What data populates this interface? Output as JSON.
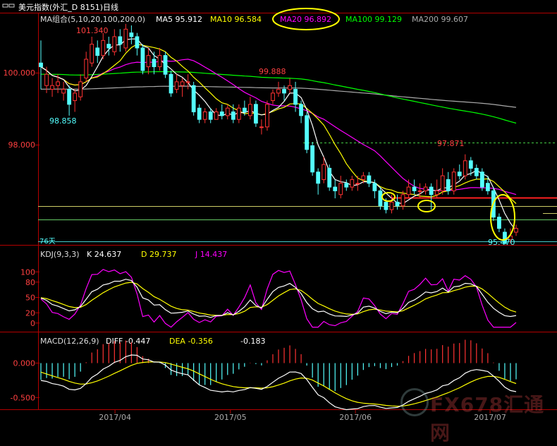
{
  "title": {
    "icon": "window-icon",
    "text": "美元指数(外汇_D 8151)日线"
  },
  "ma_legend": {
    "label": "MA组合(5,10,20,100,200,0)",
    "items": [
      {
        "text": "MA5 95.912",
        "color": "#ffffff"
      },
      {
        "text": "MA10 96.584",
        "color": "#ffff00"
      },
      {
        "text": "MA20 96.892",
        "color": "#ff00ff"
      },
      {
        "text": "MA100 99.129",
        "color": "#00ff00"
      },
      {
        "text": "MA200 99.607",
        "color": "#aaaaaa"
      }
    ],
    "highlight_index": 2
  },
  "kdj_legend": {
    "label": "KDJ(9,3,3)",
    "k": "K  24.637",
    "d": "D  29.737",
    "j": "J  14.437"
  },
  "macd_legend": {
    "label": "MACD(12,26,9)",
    "diff": "DIFF  -0.447",
    "dea": "DEA  -0.356",
    "macd": "-0.183"
  },
  "annotations": {
    "high1": "101.340",
    "low1": "98.858",
    "high2": "99.888",
    "high3": "97.871",
    "low_final": "95.470",
    "days": "76天"
  },
  "watermark": "FX678汇通网",
  "colors": {
    "up": "#ff3232",
    "down": "#54ffff",
    "ma5": "#ffffff",
    "ma10": "#ffff00",
    "ma20": "#ff00ff",
    "ma100": "#00ff00",
    "ma200": "#aaaaaa",
    "axis": "#b40000",
    "highlight": "#ffff00"
  },
  "chart_data": [
    {
      "type": "candlestick",
      "title": "美元指数(外汇_D 8151)日线",
      "x_labels": [
        "2017/04",
        "2017/05",
        "2017/06",
        "2017/07"
      ],
      "y_ticks": [
        98.0,
        100.0
      ],
      "ylim": [
        95.5,
        101.3
      ],
      "candles": [
        [
          100.3,
          100.2,
          100.9,
          99.6
        ],
        [
          99.7,
          100.0,
          100.2,
          99.5
        ],
        [
          99.6,
          99.7,
          99.9,
          99.4
        ],
        [
          99.7,
          99.8,
          100.0,
          99.5
        ],
        [
          99.5,
          99.6,
          99.8,
          99.3
        ],
        [
          99.6,
          99.2,
          99.7,
          98.9
        ],
        [
          99.3,
          99.5,
          99.6,
          99.0
        ],
        [
          99.4,
          99.8,
          100.0,
          99.3
        ],
        [
          99.9,
          100.4,
          100.6,
          99.8
        ],
        [
          100.3,
          100.8,
          101.0,
          100.2
        ],
        [
          100.7,
          100.5,
          100.9,
          100.3
        ],
        [
          100.5,
          100.9,
          101.1,
          100.4
        ],
        [
          100.8,
          100.7,
          101.0,
          100.5
        ],
        [
          100.6,
          101.0,
          101.2,
          100.5
        ],
        [
          101.0,
          100.8,
          101.2,
          100.6
        ],
        [
          100.7,
          101.2,
          101.34,
          100.6
        ],
        [
          101.1,
          101.0,
          101.3,
          100.8
        ],
        [
          101.0,
          100.7,
          101.1,
          100.5
        ],
        [
          100.7,
          100.1,
          100.8,
          100.0
        ],
        [
          100.2,
          100.5,
          100.7,
          100.0
        ],
        [
          100.4,
          100.2,
          100.6,
          100.0
        ],
        [
          100.2,
          100.5,
          100.7,
          100.1
        ],
        [
          100.5,
          100.0,
          100.6,
          99.9
        ],
        [
          100.0,
          99.5,
          100.1,
          99.4
        ],
        [
          99.6,
          99.8,
          100.0,
          99.5
        ],
        [
          99.7,
          99.8,
          99.9,
          99.4
        ],
        [
          99.8,
          99.8,
          100.0,
          99.6
        ],
        [
          99.7,
          99.0,
          99.8,
          98.9
        ],
        [
          99.1,
          98.8,
          99.2,
          98.7
        ],
        [
          98.8,
          99.0,
          99.1,
          98.7
        ],
        [
          99.0,
          98.8,
          99.1,
          98.7
        ],
        [
          98.8,
          99.0,
          99.1,
          98.8
        ],
        [
          99.0,
          98.9,
          99.2,
          98.8
        ],
        [
          98.9,
          99.1,
          99.2,
          98.8
        ],
        [
          99.0,
          98.8,
          99.2,
          98.7
        ],
        [
          98.8,
          99.1,
          99.2,
          98.7
        ],
        [
          99.1,
          99.0,
          99.3,
          98.9
        ],
        [
          98.9,
          99.2,
          99.4,
          98.8
        ],
        [
          99.2,
          98.7,
          99.3,
          98.6
        ],
        [
          98.6,
          98.6,
          98.8,
          98.4
        ],
        [
          98.6,
          99.2,
          99.3,
          98.5
        ],
        [
          99.3,
          99.5,
          99.6,
          99.2
        ],
        [
          99.5,
          99.6,
          99.8,
          99.4
        ],
        [
          99.6,
          99.5,
          99.7,
          99.3
        ],
        [
          99.6,
          99.7,
          99.888,
          99.5
        ],
        [
          99.6,
          99.2,
          99.8,
          99.0
        ],
        [
          99.2,
          98.9,
          99.3,
          98.7
        ],
        [
          98.9,
          98.0,
          99.0,
          97.9
        ],
        [
          98.1,
          97.4,
          98.2,
          97.3
        ],
        [
          97.4,
          97.1,
          97.5,
          96.8
        ],
        [
          97.2,
          97.6,
          97.8,
          97.1
        ],
        [
          97.5,
          97.0,
          97.6,
          96.9
        ],
        [
          97.0,
          96.9,
          97.2,
          96.7
        ],
        [
          96.8,
          97.1,
          97.3,
          96.7
        ],
        [
          97.1,
          97.0,
          97.2,
          96.9
        ],
        [
          97.0,
          97.2,
          97.3,
          96.9
        ],
        [
          97.1,
          97.1,
          97.3,
          96.9
        ],
        [
          97.2,
          97.3,
          97.4,
          97.1
        ],
        [
          97.3,
          97.1,
          97.4,
          97.0
        ],
        [
          97.1,
          96.9,
          97.2,
          96.7
        ],
        [
          96.9,
          96.5,
          97.0,
          96.4
        ],
        [
          96.6,
          96.4,
          96.7,
          96.3
        ],
        [
          96.4,
          96.6,
          96.8,
          96.3
        ],
        [
          96.6,
          96.5,
          96.8,
          96.4
        ],
        [
          96.5,
          96.8,
          96.9,
          96.4
        ],
        [
          96.8,
          97.0,
          97.2,
          96.7
        ],
        [
          97.0,
          96.9,
          97.2,
          96.8
        ],
        [
          96.9,
          96.9,
          97.1,
          96.7
        ],
        [
          96.9,
          97.0,
          97.1,
          96.8
        ],
        [
          97.0,
          96.8,
          97.1,
          96.4
        ],
        [
          96.8,
          96.9,
          97.2,
          96.7
        ],
        [
          96.9,
          97.3,
          97.5,
          96.8
        ],
        [
          97.2,
          96.9,
          97.4,
          96.8
        ],
        [
          96.9,
          97.4,
          97.5,
          96.8
        ],
        [
          97.4,
          97.3,
          97.6,
          97.2
        ],
        [
          97.3,
          97.7,
          97.871,
          97.2
        ],
        [
          97.7,
          97.5,
          97.8,
          97.3
        ],
        [
          97.5,
          97.3,
          97.6,
          97.2
        ],
        [
          97.4,
          97.0,
          97.5,
          96.9
        ],
        [
          97.1,
          96.9,
          97.3,
          96.8
        ],
        [
          96.9,
          96.2,
          97.0,
          96.1
        ],
        [
          96.2,
          95.9,
          96.3,
          95.8
        ],
        [
          95.8,
          95.5,
          95.9,
          95.47
        ],
        [
          95.6,
          95.7,
          95.9,
          95.5
        ],
        [
          95.8,
          95.9,
          96.0,
          95.7
        ]
      ]
    },
    {
      "type": "line",
      "title": "KDJ(9,3,3)",
      "y_ticks": [
        0,
        20,
        50,
        80,
        100
      ],
      "ylim": [
        -10,
        110
      ]
    },
    {
      "type": "bar",
      "title": "MACD(12,26,9)",
      "y_ticks": [
        0.0,
        -0.5
      ],
      "y_tick_labels": [
        "0.000",
        "-0.500"
      ],
      "ylim": [
        -0.65,
        0.2
      ]
    }
  ]
}
